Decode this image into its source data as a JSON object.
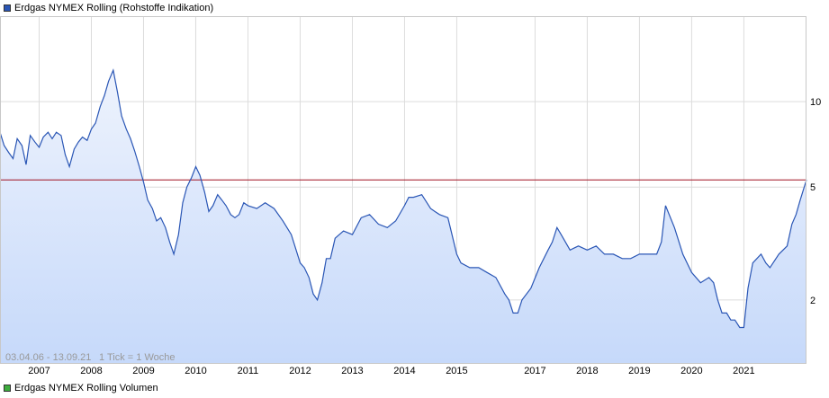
{
  "legend": {
    "price_label": "Erdgas NYMEX Rolling (Rohstoffe Indikation)",
    "price_color": "#2a56b5",
    "volume_label": "Erdgas NYMEX Rolling Volumen",
    "volume_color": "#3dac3d"
  },
  "chart_data": {
    "type": "area",
    "date_range_label": "03.04.06 - 13.09.21",
    "tick_info_label": "1 Tick = 1 Woche",
    "x_tick_labels": [
      "2007",
      "2008",
      "2009",
      "2010",
      "2011",
      "2012",
      "2013",
      "2014",
      "2015",
      "2017",
      "2018",
      "2019",
      "2020",
      "2021"
    ],
    "x_tick_dates": [
      2007.0,
      2008.0,
      2009.0,
      2010.0,
      2011.0,
      2012.0,
      2013.0,
      2014.0,
      2015.0,
      2016.5,
      2017.5,
      2018.5,
      2019.5,
      2020.5
    ],
    "x_range": [
      2006.25,
      2021.7
    ],
    "y_scale": "log",
    "y_range": [
      1.2,
      20
    ],
    "y_tick_values": [
      2,
      5,
      10
    ],
    "y_tick_labels": [
      "2",
      "5",
      "10"
    ],
    "reference_line": {
      "value": 5.3,
      "color": "#a01020"
    },
    "line_color": "#2a56b5",
    "fill_color": "#c6d9fa",
    "grid": true,
    "series": [
      {
        "x": [
          2006.25,
          2006.33,
          2006.42,
          2006.5,
          2006.58,
          2006.67,
          2006.75,
          2006.83,
          2006.92,
          2007.0,
          2007.08,
          2007.17,
          2007.25,
          2007.33,
          2007.42,
          2007.5,
          2007.58,
          2007.67,
          2007.75,
          2007.83,
          2007.92,
          2008.0,
          2008.08,
          2008.17,
          2008.25,
          2008.33,
          2008.42,
          2008.5,
          2008.58,
          2008.67,
          2008.75,
          2008.83,
          2008.92,
          2009.0,
          2009.08,
          2009.17,
          2009.25,
          2009.33,
          2009.42,
          2009.5,
          2009.58,
          2009.67,
          2009.75,
          2009.83,
          2009.92,
          2010.0,
          2010.08,
          2010.17,
          2010.25,
          2010.33,
          2010.42,
          2010.5,
          2010.58,
          2010.67,
          2010.75,
          2010.83,
          2010.92,
          2011.0,
          2011.17,
          2011.33,
          2011.5,
          2011.67,
          2011.83,
          2012.0,
          2012.08,
          2012.17,
          2012.25,
          2012.33,
          2012.42,
          2012.5,
          2012.58,
          2012.67,
          2012.83,
          2013.0,
          2013.17,
          2013.33,
          2013.5,
          2013.67,
          2013.83,
          2014.0,
          2014.08,
          2014.17,
          2014.33,
          2014.5,
          2014.58,
          2014.67,
          2014.83,
          2015.0,
          2015.08,
          2015.25,
          2015.42,
          2015.58,
          2015.75,
          2015.92,
          2016.0,
          2016.08,
          2016.17,
          2016.25,
          2016.42,
          2016.58,
          2016.75,
          2016.83,
          2016.92,
          2017.0,
          2017.17,
          2017.33,
          2017.5,
          2017.67,
          2017.83,
          2018.0,
          2018.17,
          2018.33,
          2018.5,
          2018.67,
          2018.83,
          2018.92,
          2019.0,
          2019.17,
          2019.33,
          2019.5,
          2019.67,
          2019.83,
          2019.92,
          2020.0,
          2020.08,
          2020.17,
          2020.25,
          2020.33,
          2020.42,
          2020.5,
          2020.58,
          2020.67,
          2020.83,
          2020.92,
          2021.0,
          2021.17,
          2021.33,
          2021.42,
          2021.5,
          2021.58,
          2021.67,
          2021.7
        ],
        "y": [
          7.8,
          7.0,
          6.6,
          6.3,
          7.4,
          7.0,
          6.0,
          7.6,
          7.2,
          6.9,
          7.5,
          7.8,
          7.4,
          7.8,
          7.6,
          6.5,
          5.9,
          6.8,
          7.2,
          7.5,
          7.3,
          8.0,
          8.4,
          9.6,
          10.5,
          11.8,
          12.9,
          10.8,
          8.9,
          8.0,
          7.4,
          6.7,
          5.9,
          5.2,
          4.5,
          4.2,
          3.8,
          3.9,
          3.6,
          3.2,
          2.9,
          3.4,
          4.4,
          5.0,
          5.4,
          5.9,
          5.5,
          4.8,
          4.1,
          4.3,
          4.7,
          4.5,
          4.3,
          4.0,
          3.9,
          4.0,
          4.4,
          4.3,
          4.2,
          4.4,
          4.2,
          3.8,
          3.4,
          2.7,
          2.6,
          2.4,
          2.1,
          2.0,
          2.3,
          2.8,
          2.8,
          3.3,
          3.5,
          3.4,
          3.9,
          4.0,
          3.7,
          3.6,
          3.8,
          4.3,
          4.6,
          4.6,
          4.7,
          4.2,
          4.1,
          4.0,
          3.9,
          2.9,
          2.7,
          2.6,
          2.6,
          2.5,
          2.4,
          2.1,
          2.0,
          1.8,
          1.8,
          2.0,
          2.2,
          2.6,
          3.0,
          3.2,
          3.6,
          3.4,
          3.0,
          3.1,
          3.0,
          3.1,
          2.9,
          2.9,
          2.8,
          2.8,
          2.9,
          2.9,
          2.9,
          3.2,
          4.3,
          3.6,
          2.9,
          2.5,
          2.3,
          2.4,
          2.3,
          2.0,
          1.8,
          1.8,
          1.7,
          1.7,
          1.6,
          1.6,
          2.2,
          2.7,
          2.9,
          2.7,
          2.6,
          2.9,
          3.1,
          3.7,
          4.0,
          4.5,
          5.1,
          5.3
        ]
      }
    ]
  }
}
